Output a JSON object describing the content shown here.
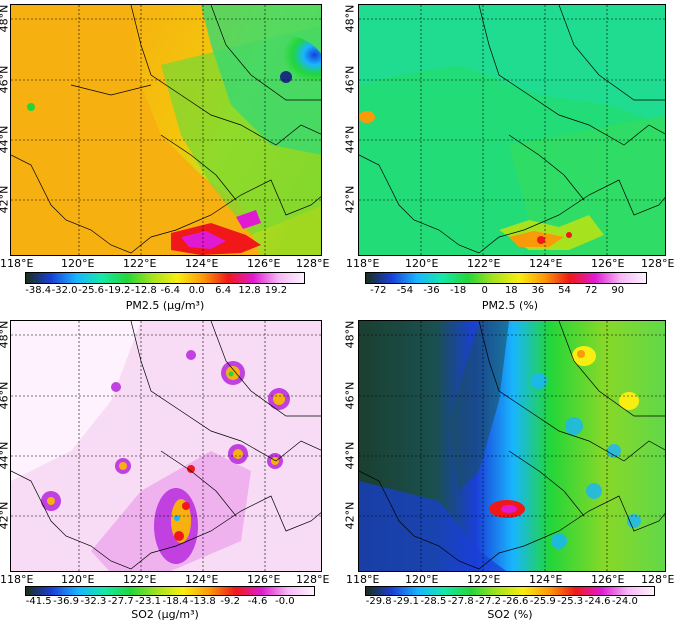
{
  "panels": [
    {
      "id": "pm25_abs",
      "lon_labels": [
        "118°E",
        "120°E",
        "122°E",
        "124°E",
        "126°E",
        "128°E"
      ],
      "lat_labels": [
        "48°N",
        "46°N",
        "44°N",
        "42°N"
      ],
      "colorbar": {
        "ticks": [
          "-38.4",
          "-32.0",
          "-25.6",
          "-19.2",
          "-12.8",
          "-6.4",
          "0.0",
          "6.4",
          "12.8",
          "19.2"
        ],
        "title": "PM2.5 (μg/m³)",
        "colors": [
          "#1a2f1a",
          "#1a3fd8",
          "#19b5ff",
          "#16e8a8",
          "#22d63a",
          "#a6e21e",
          "#f8ee12",
          "#fb9a08",
          "#f01818",
          "#e01ad2",
          "#f6b8f6",
          "#fdf2fd"
        ]
      }
    },
    {
      "id": "pm25_pct",
      "lon_labels": [
        "118°E",
        "120°E",
        "122°E",
        "124°E",
        "126°E",
        "128°E"
      ],
      "lat_labels": [
        "48°N",
        "46°N",
        "44°N",
        "42°N"
      ],
      "colorbar": {
        "ticks": [
          "-72",
          "-54",
          "-36",
          "-18",
          "0",
          "18",
          "36",
          "54",
          "72",
          "90"
        ],
        "title": "PM2.5 (%)",
        "colors": [
          "#1a2f1a",
          "#1a3fd8",
          "#19b5ff",
          "#16e8a8",
          "#22d63a",
          "#a6e21e",
          "#f8ee12",
          "#fb9a08",
          "#f01818",
          "#e01ad2",
          "#f6b8f6",
          "#fdf2fd"
        ]
      }
    },
    {
      "id": "so2_abs",
      "lon_labels": [
        "118°E",
        "120°E",
        "122°E",
        "124°E",
        "126°E",
        "128°E"
      ],
      "lat_labels": [
        "48°N",
        "46°N",
        "44°N",
        "42°N"
      ],
      "colorbar": {
        "ticks": [
          "-41.5",
          "-36.9",
          "-32.3",
          "-27.7",
          "-23.1",
          "-18.4",
          "-13.8",
          "-9.2",
          "-4.6",
          "-0.0"
        ],
        "title": "SO2 (μg/m³)",
        "colors": [
          "#1a2f1a",
          "#1a3fd8",
          "#19b5ff",
          "#16e8a8",
          "#22d63a",
          "#a6e21e",
          "#f8ee12",
          "#fb9a08",
          "#f01818",
          "#e01ad2",
          "#f6b8f6",
          "#fdf2fd"
        ]
      }
    },
    {
      "id": "so2_pct",
      "lon_labels": [
        "118°E",
        "120°E",
        "122°E",
        "124°E",
        "126°E",
        "128°E"
      ],
      "lat_labels": [
        "48°N",
        "46°N",
        "44°N",
        "42°N"
      ],
      "colorbar": {
        "ticks": [
          "-29.8",
          "-29.1",
          "-28.5",
          "-27.8",
          "-27.2",
          "-26.6",
          "-25.9",
          "-25.3",
          "-24.6",
          "-24.0"
        ],
        "title": "SO2 (%)",
        "colors": [
          "#1a2f1a",
          "#1a3fd8",
          "#19b5ff",
          "#16e8a8",
          "#22d63a",
          "#a6e21e",
          "#f8ee12",
          "#fb9a08",
          "#f01818",
          "#e01ad2",
          "#f6b8f6",
          "#fdf2fd"
        ]
      }
    }
  ]
}
